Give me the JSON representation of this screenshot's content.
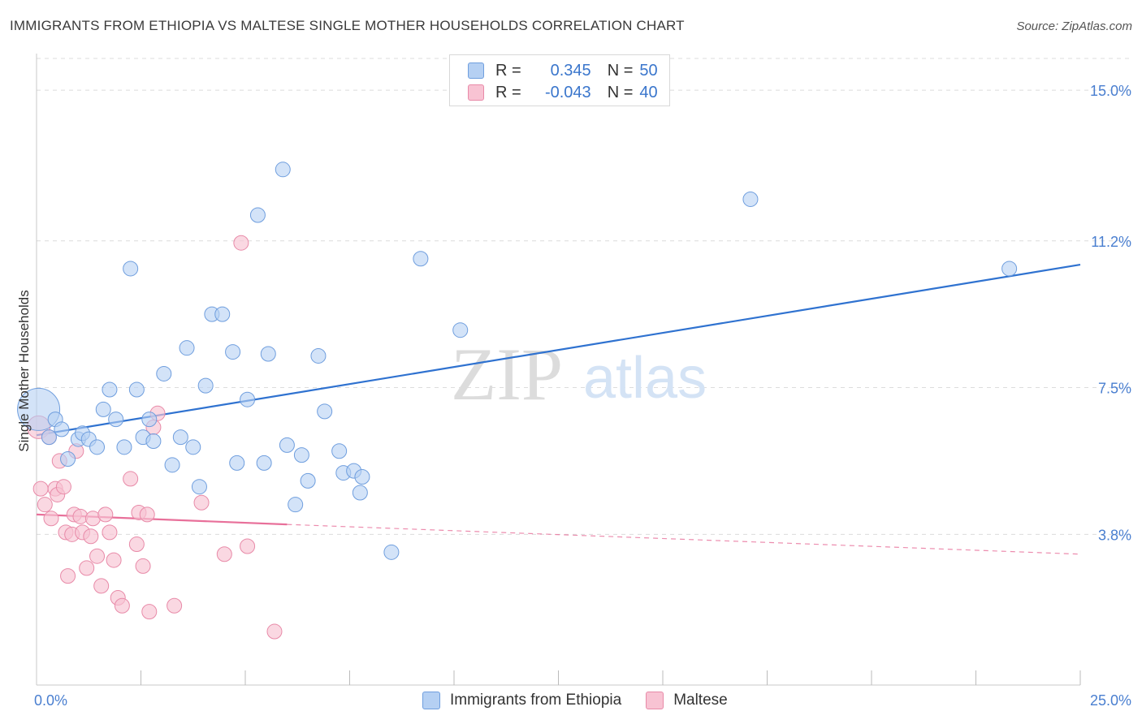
{
  "title": "IMMIGRANTS FROM ETHIOPIA VS MALTESE SINGLE MOTHER HOUSEHOLDS CORRELATION CHART",
  "source": "Source: ZipAtlas.com",
  "watermark": {
    "zip": "ZIP",
    "atlas": "atlas"
  },
  "legend": {
    "r_label": "R =",
    "n_label": "N =",
    "rows": [
      {
        "r": "0.345",
        "n": "50",
        "color": "#a9c8f0"
      },
      {
        "r": "-0.043",
        "n": "40",
        "color": "#f6b8cc"
      }
    ]
  },
  "colors": {
    "ethiopia_fill": "#b5d0f3",
    "ethiopia_stroke": "#6f9ede",
    "ethiopia_line": "#2f72d0",
    "maltese_fill": "#f8c3d3",
    "maltese_stroke": "#e88aa8",
    "maltese_line": "#e8709a",
    "tick_text": "#4a7fd0",
    "grid": "#dcdcdc"
  },
  "chart_data": {
    "type": "scatter",
    "title": "IMMIGRANTS FROM ETHIOPIA VS MALTESE SINGLE MOTHER HOUSEHOLDS CORRELATION CHART",
    "xlabel": "",
    "ylabel": "Single Mother Households",
    "xlim": [
      0,
      25
    ],
    "ylim": [
      0,
      15.8
    ],
    "x_ticks": [
      "0.0%",
      "25.0%"
    ],
    "y_ticks": [
      {
        "value": 3.8,
        "label": "3.8%"
      },
      {
        "value": 7.5,
        "label": "7.5%"
      },
      {
        "value": 11.2,
        "label": "11.2%"
      },
      {
        "value": 15.0,
        "label": "15.0%"
      }
    ],
    "grid": true,
    "legend_position": "top-center",
    "series": [
      {
        "name": "Immigrants from Ethiopia",
        "points": [
          [
            0.05,
            6.95,
            26
          ],
          [
            0.3,
            6.25,
            9
          ],
          [
            0.45,
            6.7,
            9
          ],
          [
            0.6,
            6.45,
            9
          ],
          [
            0.75,
            5.7,
            9
          ],
          [
            1.0,
            6.2,
            9
          ],
          [
            1.1,
            6.35,
            9
          ],
          [
            1.25,
            6.2,
            9
          ],
          [
            1.45,
            6.0,
            9
          ],
          [
            1.6,
            6.95,
            9
          ],
          [
            1.75,
            7.45,
            9
          ],
          [
            1.9,
            6.7,
            9
          ],
          [
            2.1,
            6.0,
            9
          ],
          [
            2.25,
            10.5,
            9
          ],
          [
            2.4,
            7.45,
            9
          ],
          [
            2.55,
            6.25,
            9
          ],
          [
            2.7,
            6.7,
            9
          ],
          [
            2.8,
            6.15,
            9
          ],
          [
            3.05,
            7.85,
            9
          ],
          [
            3.25,
            5.55,
            9
          ],
          [
            3.45,
            6.25,
            9
          ],
          [
            3.6,
            8.5,
            9
          ],
          [
            3.75,
            6.0,
            9
          ],
          [
            3.9,
            5.0,
            9
          ],
          [
            4.05,
            7.55,
            9
          ],
          [
            4.2,
            9.35,
            9
          ],
          [
            4.45,
            9.35,
            9
          ],
          [
            4.7,
            8.4,
            9
          ],
          [
            4.8,
            5.6,
            9
          ],
          [
            5.05,
            7.2,
            9
          ],
          [
            5.3,
            11.85,
            9
          ],
          [
            5.45,
            5.6,
            9
          ],
          [
            5.55,
            8.35,
            9
          ],
          [
            5.9,
            13.0,
            9
          ],
          [
            6.0,
            6.05,
            9
          ],
          [
            6.2,
            4.55,
            9
          ],
          [
            6.35,
            5.8,
            9
          ],
          [
            6.5,
            5.15,
            9
          ],
          [
            6.75,
            8.3,
            9
          ],
          [
            6.9,
            6.9,
            9
          ],
          [
            7.25,
            5.9,
            9
          ],
          [
            7.35,
            5.35,
            9
          ],
          [
            7.6,
            5.4,
            9
          ],
          [
            7.75,
            4.85,
            9
          ],
          [
            7.8,
            5.25,
            9
          ],
          [
            8.5,
            3.35,
            9
          ],
          [
            9.2,
            10.75,
            9
          ],
          [
            10.15,
            8.95,
            9
          ],
          [
            17.1,
            12.25,
            9
          ],
          [
            23.3,
            10.5,
            9
          ]
        ],
        "trend": [
          [
            0,
            6.3
          ],
          [
            25,
            10.6
          ]
        ]
      },
      {
        "name": "Maltese",
        "points": [
          [
            0.05,
            6.5,
            14
          ],
          [
            0.1,
            4.95,
            9
          ],
          [
            0.2,
            4.55,
            9
          ],
          [
            0.3,
            6.25,
            9
          ],
          [
            0.35,
            4.2,
            9
          ],
          [
            0.45,
            4.95,
            9
          ],
          [
            0.5,
            4.8,
            9
          ],
          [
            0.55,
            5.65,
            9
          ],
          [
            0.65,
            5.0,
            9
          ],
          [
            0.7,
            3.85,
            9
          ],
          [
            0.75,
            2.75,
            9
          ],
          [
            0.85,
            3.8,
            9
          ],
          [
            0.9,
            4.3,
            9
          ],
          [
            0.95,
            5.9,
            9
          ],
          [
            1.05,
            4.25,
            9
          ],
          [
            1.1,
            3.85,
            9
          ],
          [
            1.2,
            2.95,
            9
          ],
          [
            1.3,
            3.75,
            9
          ],
          [
            1.35,
            4.2,
            9
          ],
          [
            1.45,
            3.25,
            9
          ],
          [
            1.55,
            2.5,
            9
          ],
          [
            1.65,
            4.3,
            9
          ],
          [
            1.75,
            3.85,
            9
          ],
          [
            1.85,
            3.15,
            9
          ],
          [
            1.95,
            2.2,
            9
          ],
          [
            2.05,
            2.0,
            9
          ],
          [
            2.25,
            5.2,
            9
          ],
          [
            2.4,
            3.55,
            9
          ],
          [
            2.45,
            4.35,
            9
          ],
          [
            2.55,
            3.0,
            9
          ],
          [
            2.65,
            4.3,
            9
          ],
          [
            2.7,
            1.85,
            9
          ],
          [
            2.8,
            6.5,
            9
          ],
          [
            2.9,
            6.85,
            9
          ],
          [
            3.3,
            2.0,
            9
          ],
          [
            3.95,
            4.6,
            9
          ],
          [
            4.5,
            3.3,
            9
          ],
          [
            4.9,
            11.15,
            9
          ],
          [
            5.05,
            3.5,
            9
          ],
          [
            5.7,
            1.35,
            9
          ]
        ],
        "trend": [
          [
            0,
            4.3
          ],
          [
            6,
            4.05
          ]
        ],
        "trend_dashed": [
          [
            6,
            4.05
          ],
          [
            25,
            3.3
          ]
        ]
      }
    ]
  },
  "bottom_legend": [
    "Immigrants from Ethiopia",
    "Maltese"
  ]
}
